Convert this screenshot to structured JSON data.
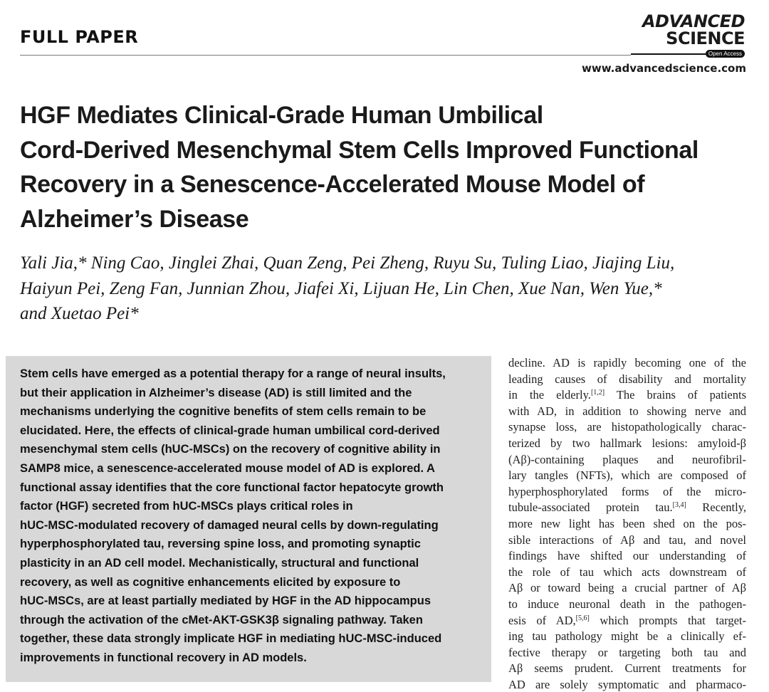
{
  "header": {
    "section": "FULL PAPER",
    "journal_logo": {
      "line1": "ADVANCED",
      "line2": "SCIENCE",
      "badge": "Open Access"
    },
    "url": "www.advancedscience.com"
  },
  "title_lines": [
    "HGF Mediates Clinical-Grade Human Umbilical",
    "Cord-Derived Mesenchymal Stem Cells Improved Functional",
    "Recovery in a Senescence-Accelerated Mouse Model of",
    "Alzheimer’s Disease"
  ],
  "author_lines": [
    "Yali Jia,* Ning Cao, Jinglei Zhai, Quan Zeng, Pei Zheng, Ruyu Su, Tuling Liao, Jiajing Liu,",
    "Haiyun Pei, Zeng Fan, Junnian Zhou, Jiafei Xi, Lijuan He, Lin Chen, Xue Nan, Wen Yue,*",
    "and Xuetao Pei*"
  ],
  "abstract_lines": [
    "Stem cells have emerged as a potential therapy for a range of neural insults,",
    "but their application in Alzheimer’s disease (AD) is still limited and the",
    "mechanisms underlying the cognitive benefits of stem cells remain to be",
    "elucidated. Here, the effects of clinical-grade human umbilical cord-derived",
    "mesenchymal stem cells (hUC-MSCs) on the recovery of cognitive ability in",
    "SAMP8 mice, a senescence-accelerated mouse model of AD is explored. A",
    "functional assay identifies that the core functional factor hepatocyte growth",
    "factor (HGF) secreted from hUC-MSCs plays critical roles in",
    "hUC-MSC-modulated recovery of damaged neural cells by down-regulating",
    "hyperphosphorylated tau, reversing spine loss, and promoting synaptic",
    "plasticity in an AD cell model. Mechanistically, structural and functional",
    "recovery, as well as cognitive enhancements elicited by exposure to",
    "hUC-MSCs, are at least partially mediated by HGF in the AD hippocampus",
    "through the activation of the cMet-AKT-GSK3β signaling pathway. Taken",
    "together, these data strongly implicate HGF in mediating hUC-MSC-induced",
    "improvements in functional recovery in AD models."
  ],
  "body_lines": [
    {
      "t": "decline. AD is rapidly becoming one of the"
    },
    {
      "t": "leading causes of disability and mortality"
    },
    {
      "t": "in the elderly.",
      "sup": "[1,2]",
      "r": " The brains of patients"
    },
    {
      "t": "with AD, in addition to showing nerve and"
    },
    {
      "t": "synapse loss, are histopathologically charac-"
    },
    {
      "t": "terized by two hallmark lesions: amyloid-β"
    },
    {
      "t": "(Aβ)-containing plaques and neurofibril-"
    },
    {
      "t": "lary tangles (NFTs), which are composed of"
    },
    {
      "t": "hyperphosphorylated forms of the micro-"
    },
    {
      "t": "tubule-associated protein tau.",
      "sup": "[3,4]",
      "r": " Recently,"
    },
    {
      "t": "more new light has been shed on the pos-"
    },
    {
      "t": "sible interactions of Aβ and tau, and novel"
    },
    {
      "t": "findings have shifted our understanding of"
    },
    {
      "t": "the role of tau which acts downstream of"
    },
    {
      "t": "Aβ or toward being a crucial partner of Aβ"
    },
    {
      "t": "to induce neuronal death in the pathogen-"
    },
    {
      "t": "esis of AD,",
      "sup": "[5,6]",
      "r": " which prompts that target-"
    },
    {
      "t": "ing tau pathology might be a clinically ef-"
    },
    {
      "t": "fective therapy or targeting both tau and"
    },
    {
      "t": "Aβ seems prudent. Current treatments for"
    },
    {
      "t": "AD are solely symptomatic and pharmaco-"
    }
  ]
}
